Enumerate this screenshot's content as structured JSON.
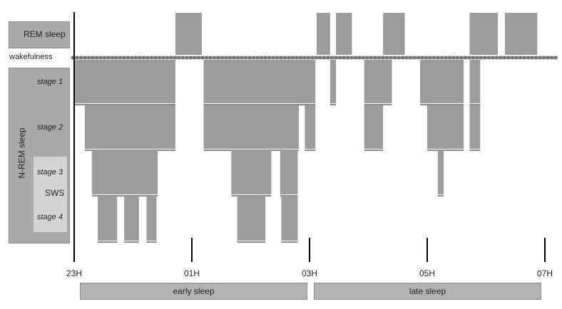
{
  "chart_data": {
    "type": "hypnogram",
    "y_categories": {
      "rem": "REM sleep",
      "wake": "wakefulness",
      "nrem": "N-REM sleep",
      "stage1": "stage 1",
      "stage2": "stage 2",
      "stage3": "stage 3",
      "sws": "SWS",
      "stage4": "stage 4"
    },
    "x_ticks": [
      "23H",
      "01H",
      "03H",
      "05H",
      "07H"
    ],
    "x_tick_hours": [
      0,
      2,
      4,
      6,
      8
    ],
    "x_range_hours": [
      0,
      8
    ],
    "phases": [
      {
        "label": "early sleep",
        "start": 0.1,
        "end": 4.0
      },
      {
        "label": "late sleep",
        "start": 4.1,
        "end": 8.0
      }
    ],
    "rem_episodes": [
      [
        1.72,
        2.17
      ],
      [
        4.12,
        4.35
      ],
      [
        4.45,
        4.72
      ],
      [
        5.25,
        5.62
      ],
      [
        6.72,
        7.2
      ],
      [
        7.32,
        7.87
      ]
    ],
    "stage_blocks": [
      {
        "stage": 1,
        "start": 0.0,
        "end": 1.72
      },
      {
        "stage": 2,
        "start": 0.18,
        "end": 1.72
      },
      {
        "stage": 3,
        "start": 0.3,
        "end": 1.42
      },
      {
        "stage": 4,
        "start": 0.4,
        "end": 0.73
      },
      {
        "stage": 4,
        "start": 0.85,
        "end": 1.1
      },
      {
        "stage": 4,
        "start": 1.23,
        "end": 1.4
      },
      {
        "stage": 1,
        "start": 2.2,
        "end": 4.1
      },
      {
        "stage": 2,
        "start": 2.2,
        "end": 3.82
      },
      {
        "stage": 3,
        "start": 2.67,
        "end": 3.35
      },
      {
        "stage": 4,
        "start": 2.77,
        "end": 3.25
      },
      {
        "stage": 3,
        "start": 3.5,
        "end": 3.8
      },
      {
        "stage": 4,
        "start": 3.52,
        "end": 3.8
      },
      {
        "stage": 2,
        "start": 3.92,
        "end": 4.1
      },
      {
        "stage": 1,
        "start": 4.35,
        "end": 4.45
      },
      {
        "stage": 1,
        "start": 4.93,
        "end": 5.4
      },
      {
        "stage": 2,
        "start": 4.93,
        "end": 5.25
      },
      {
        "stage": 1,
        "start": 5.88,
        "end": 6.62
      },
      {
        "stage": 2,
        "start": 6.0,
        "end": 6.62
      },
      {
        "stage": 3,
        "start": 6.18,
        "end": 6.28
      },
      {
        "stage": 1,
        "start": 6.72,
        "end": 6.9
      },
      {
        "stage": 2,
        "start": 6.72,
        "end": 6.9
      }
    ],
    "colors": {
      "bars": "#9c9c9c",
      "dotted_line": "#777777",
      "axis": "#000000",
      "label_boxes": "#a9a9a9",
      "sws_box": "#d4d4d4"
    }
  }
}
